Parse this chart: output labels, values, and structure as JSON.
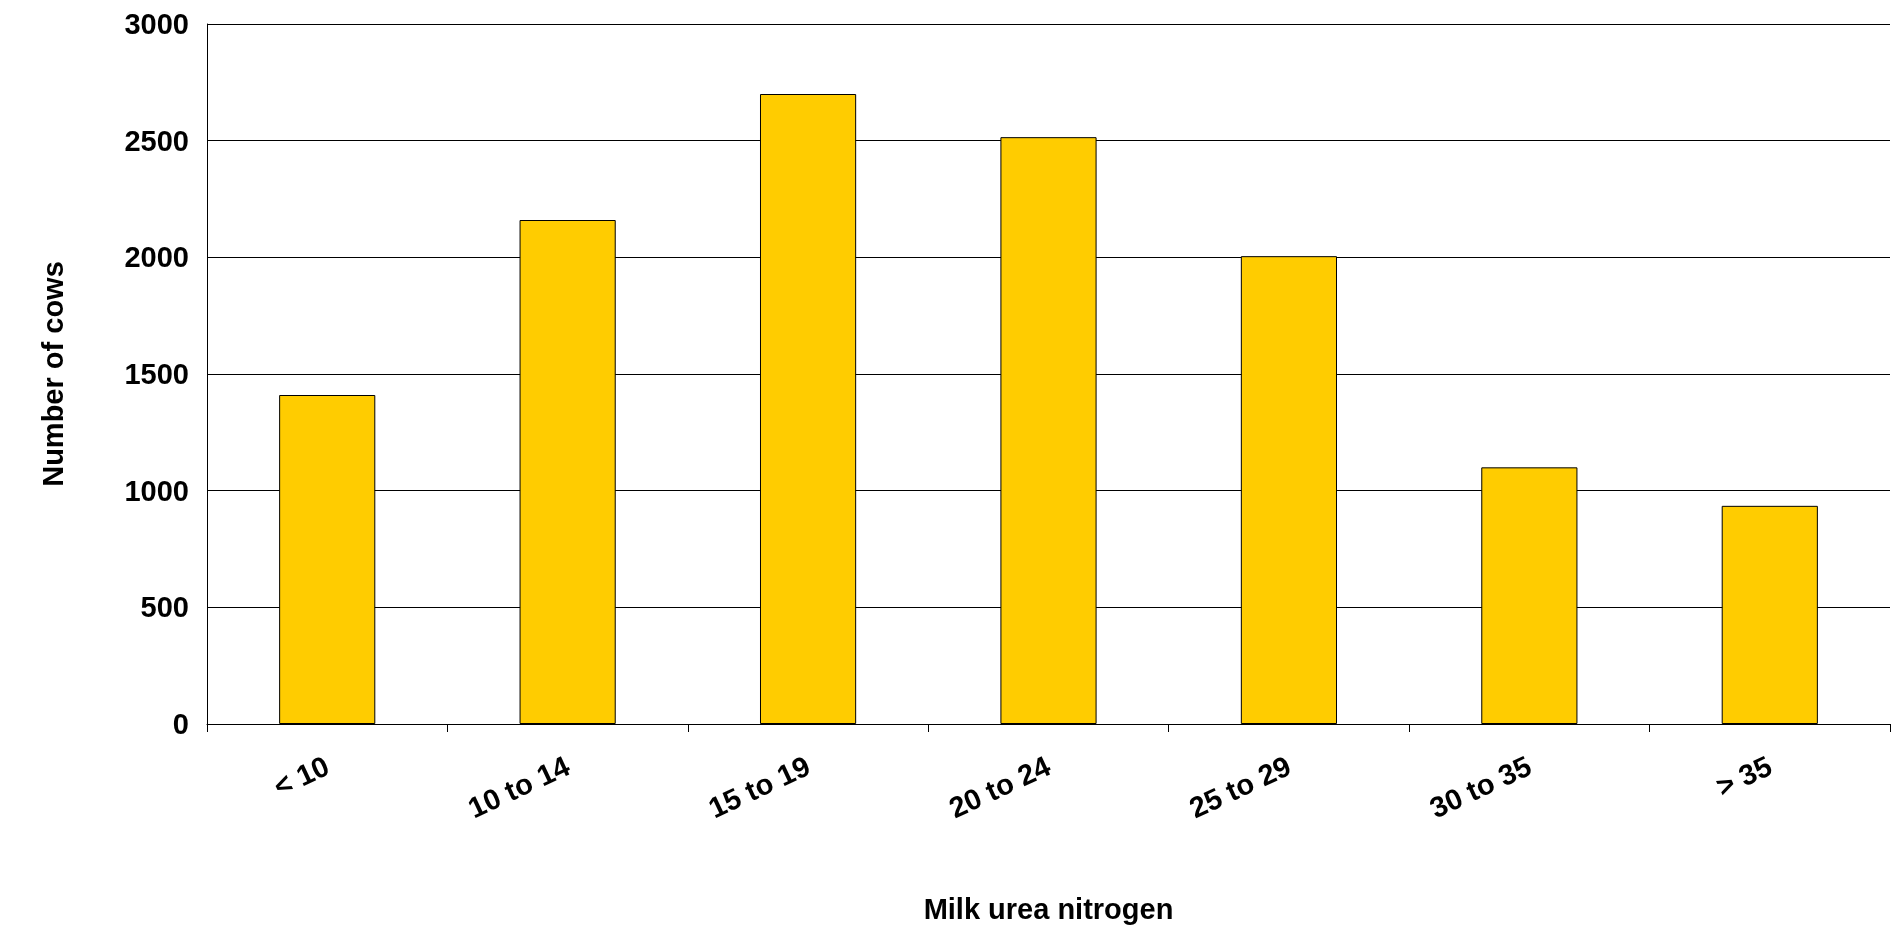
{
  "chart_data": {
    "type": "bar",
    "xlabel": "Milk urea nitrogen",
    "ylabel": "Number of cows",
    "categories": [
      "< 10",
      "10 to 14",
      "15 to 19",
      "20 to 24",
      "25 to 29",
      "30 to 35",
      "> 35"
    ],
    "values": [
      1410,
      2160,
      2700,
      2515,
      2005,
      1100,
      935
    ],
    "color": "#ffcc00",
    "ylim": [
      0,
      3000
    ],
    "yticks": [
      0,
      500,
      1000,
      1500,
      2000,
      2500,
      3000
    ],
    "grid": "y"
  }
}
